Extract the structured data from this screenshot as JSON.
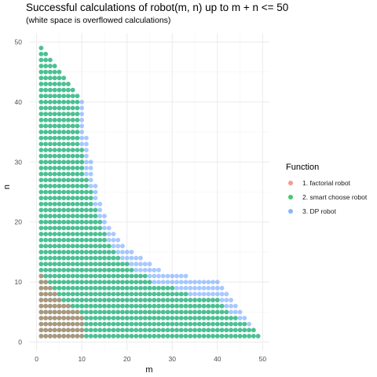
{
  "chart_data": {
    "type": "scatter",
    "title": "Successful calculations of robot(m, n) up to m + n <= 50",
    "subtitle": "(white space is overflowed calculations)",
    "xlabel": "m",
    "ylabel": "n",
    "xlim": [
      -1.5,
      51.5
    ],
    "ylim": [
      -1.5,
      51.5
    ],
    "x_ticks": [
      "0",
      "10",
      "20",
      "30",
      "40",
      "50"
    ],
    "y_ticks": [
      "0",
      "10",
      "20",
      "30",
      "40",
      "50"
    ],
    "grid": true,
    "legend_placement": "right",
    "legend_title": "Function",
    "series": [
      {
        "name": "1. factorial robot",
        "color": "#F8766D",
        "description_rule": "max n for m in 1..10",
        "max_n_by_m": {
          "1": 11,
          "2": 10,
          "3": 9,
          "4": 8,
          "5": 7,
          "6": 6,
          "7": 6,
          "8": 5,
          "9": 5,
          "10": 4
        }
      },
      {
        "name": "2. smart choose robot",
        "color": "#00BA38",
        "max_n_by_m": {
          "1": 49,
          "2": 48,
          "3": 47,
          "4": 46,
          "5": 45,
          "6": 44,
          "7": 43,
          "8": 42,
          "9": 41,
          "10": 32,
          "11": 27,
          "12": 25,
          "13": 22,
          "14": 20,
          "15": 18,
          "16": 16,
          "17": 15,
          "18": 14,
          "19": 13,
          "20": 13,
          "21": 12,
          "22": 11,
          "23": 11,
          "24": 11,
          "25": 10,
          "26": 9,
          "27": 9,
          "28": 9,
          "29": 9,
          "30": 9,
          "31": 8,
          "32": 8,
          "33": 8,
          "34": 7,
          "35": 7,
          "36": 7,
          "37": 7,
          "38": 7,
          "39": 7,
          "40": 7,
          "41": 6,
          "42": 5,
          "43": 4,
          "44": 4,
          "45": 3,
          "46": 3,
          "47": 2,
          "48": 2,
          "49": 1
        }
      },
      {
        "name": "3. DP robot",
        "color": "#619CFF",
        "max_n_by_m": {
          "1": 49,
          "2": 48,
          "3": 47,
          "4": 46,
          "5": 45,
          "6": 44,
          "7": 43,
          "8": 42,
          "9": 41,
          "10": 40,
          "11": 34,
          "12": 30,
          "13": 26,
          "14": 23,
          "15": 21,
          "16": 19,
          "17": 18,
          "18": 17,
          "19": 16,
          "20": 15,
          "21": 15,
          "22": 14,
          "23": 14,
          "24": 13,
          "25": 13,
          "26": 12,
          "27": 12,
          "28": 11,
          "29": 11,
          "30": 11,
          "31": 11,
          "32": 11,
          "33": 11,
          "34": 10,
          "35": 10,
          "36": 10,
          "37": 10,
          "38": 10,
          "39": 10,
          "40": 10,
          "41": 9,
          "42": 8,
          "43": 7,
          "44": 6,
          "45": 5,
          "46": 4,
          "47": 3,
          "48": 2,
          "49": 1
        }
      }
    ]
  }
}
